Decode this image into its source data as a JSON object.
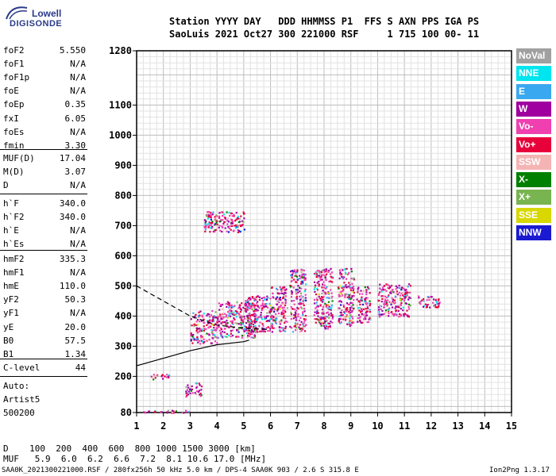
{
  "logo": {
    "line1": "Lowell",
    "line2": "DIGISONDE"
  },
  "header": {
    "line1": "Station YYYY DAY   DDD HHMMSS P1  FFS S AXN PPS IGA PS",
    "line2": "SaoLuis 2021 Oct27 300 221000 RSF     1 715 100 00- 11"
  },
  "params_group1": [
    {
      "name": "foF2",
      "value": "5.550"
    },
    {
      "name": "foF1",
      "value": "N/A"
    },
    {
      "name": "foF1p",
      "value": "N/A"
    },
    {
      "name": "foE",
      "value": "N/A"
    },
    {
      "name": "foEp",
      "value": "0.35"
    },
    {
      "name": "fxI",
      "value": "6.05"
    },
    {
      "name": "foEs",
      "value": "N/A"
    },
    {
      "name": "fmin",
      "value": "3.30"
    }
  ],
  "params_group2": [
    {
      "name": "MUF(D)",
      "value": "17.04"
    },
    {
      "name": "M(D)",
      "value": "3.07"
    },
    {
      "name": "D",
      "value": "N/A"
    }
  ],
  "params_group3": [
    {
      "name": "h`F",
      "value": "340.0"
    },
    {
      "name": "h`F2",
      "value": "340.0"
    },
    {
      "name": "h`E",
      "value": "N/A"
    },
    {
      "name": "h`Es",
      "value": "N/A"
    }
  ],
  "params_group4": [
    {
      "name": "hmF2",
      "value": "335.3"
    },
    {
      "name": "hmF1",
      "value": "N/A"
    },
    {
      "name": "hmE",
      "value": "110.0"
    },
    {
      "name": "yF2",
      "value": "50.3"
    },
    {
      "name": "yF1",
      "value": "N/A"
    },
    {
      "name": "yE",
      "value": "20.0"
    },
    {
      "name": "B0",
      "value": "57.5"
    },
    {
      "name": "B1",
      "value": "1.34"
    }
  ],
  "c_level": {
    "name": "C-level",
    "value": "44"
  },
  "auto": {
    "line1": "Auto:",
    "line2": "Artist5",
    "line3": "500200"
  },
  "legend": [
    {
      "label": "NoVal",
      "color": "#a0a0a0"
    },
    {
      "label": "NNE",
      "color": "#00e5ee"
    },
    {
      "label": "E",
      "color": "#3aa8f0"
    },
    {
      "label": "W",
      "color": "#a000a0"
    },
    {
      "label": "Vo-",
      "color": "#f040b0"
    },
    {
      "label": "Vo+",
      "color": "#e8003a"
    },
    {
      "label": "SSW",
      "color": "#f4b4b4"
    },
    {
      "label": "X-",
      "color": "#008000"
    },
    {
      "label": "X+",
      "color": "#78b450"
    },
    {
      "label": "SSE",
      "color": "#d8d800"
    },
    {
      "label": "NNW",
      "color": "#1a1ad0"
    }
  ],
  "chart_data": {
    "type": "scatter",
    "title": "",
    "xlabel": "",
    "ylabel": "",
    "xlim": [
      1,
      15
    ],
    "ylim": [
      80,
      1280
    ],
    "x_ticks": [
      "1",
      "2",
      "3",
      "4",
      "5",
      "6",
      "7",
      "8",
      "9",
      "10",
      "11",
      "12",
      "13",
      "14",
      "15"
    ],
    "y_ticks": [
      {
        "value": 80,
        "label": "80"
      },
      {
        "value": 200,
        "label": "200"
      },
      {
        "value": 300,
        "label": "300"
      },
      {
        "value": 400,
        "label": "400"
      },
      {
        "value": 500,
        "label": "500"
      },
      {
        "value": 600,
        "label": "600"
      },
      {
        "value": 700,
        "label": "700"
      },
      {
        "value": 800,
        "label": "800"
      },
      {
        "value": 900,
        "label": "900"
      },
      {
        "value": 1000,
        "label": "1000"
      },
      {
        "value": 1100,
        "label": "1100"
      },
      {
        "value": 1280,
        "label": "1280"
      }
    ],
    "grid": true,
    "echo_clusters": [
      {
        "f": [
          3.0,
          4.0
        ],
        "h": [
          310,
          420
        ]
      },
      {
        "f": [
          4.0,
          5.5
        ],
        "h": [
          330,
          450
        ]
      },
      {
        "f": [
          5.0,
          6.0
        ],
        "h": [
          350,
          470
        ]
      },
      {
        "f": [
          6.0,
          6.6
        ],
        "h": [
          350,
          500
        ]
      },
      {
        "f": [
          6.7,
          7.3
        ],
        "h": [
          350,
          560
        ]
      },
      {
        "f": [
          7.6,
          8.3
        ],
        "h": [
          360,
          560
        ]
      },
      {
        "f": [
          8.5,
          9.1
        ],
        "h": [
          370,
          560
        ]
      },
      {
        "f": [
          9.2,
          9.7
        ],
        "h": [
          380,
          500
        ]
      },
      {
        "f": [
          10.0,
          11.2
        ],
        "h": [
          400,
          510
        ]
      },
      {
        "f": [
          11.5,
          12.3
        ],
        "h": [
          430,
          470
        ]
      },
      {
        "f": [
          3.5,
          5.0
        ],
        "h": [
          680,
          750
        ]
      },
      {
        "f": [
          1.2,
          3.0
        ],
        "h": [
          80,
          90
        ]
      },
      {
        "f": [
          1.5,
          2.2
        ],
        "h": [
          190,
          210
        ]
      },
      {
        "f": [
          2.8,
          3.4
        ],
        "h": [
          135,
          180
        ]
      }
    ],
    "trace_solid": [
      [
        1,
        235
      ],
      [
        2,
        260
      ],
      [
        3,
        285
      ],
      [
        4,
        305
      ],
      [
        5,
        315
      ],
      [
        5.2,
        320
      ]
    ],
    "trace_dashed": [
      [
        1,
        500
      ],
      [
        2,
        450
      ],
      [
        3,
        400
      ],
      [
        4,
        370
      ],
      [
        5,
        360
      ],
      [
        6,
        355
      ]
    ]
  },
  "bottom": {
    "d_row": "D    100  200  400  600  800 1000 1500 3000 [km]",
    "muf_row": "MUF   5.9  6.0  6.2  6.6  7.2  8.1 10.6 17.0 [MHz]"
  },
  "footer": {
    "left": "SAA0K_2021300221000.RSF / 280fx256h 50 kHz 5.0 km / DPS-4 SAA0K 903 / 2.6 S 315.8 E",
    "right": "Ion2Png 1.3.17"
  }
}
